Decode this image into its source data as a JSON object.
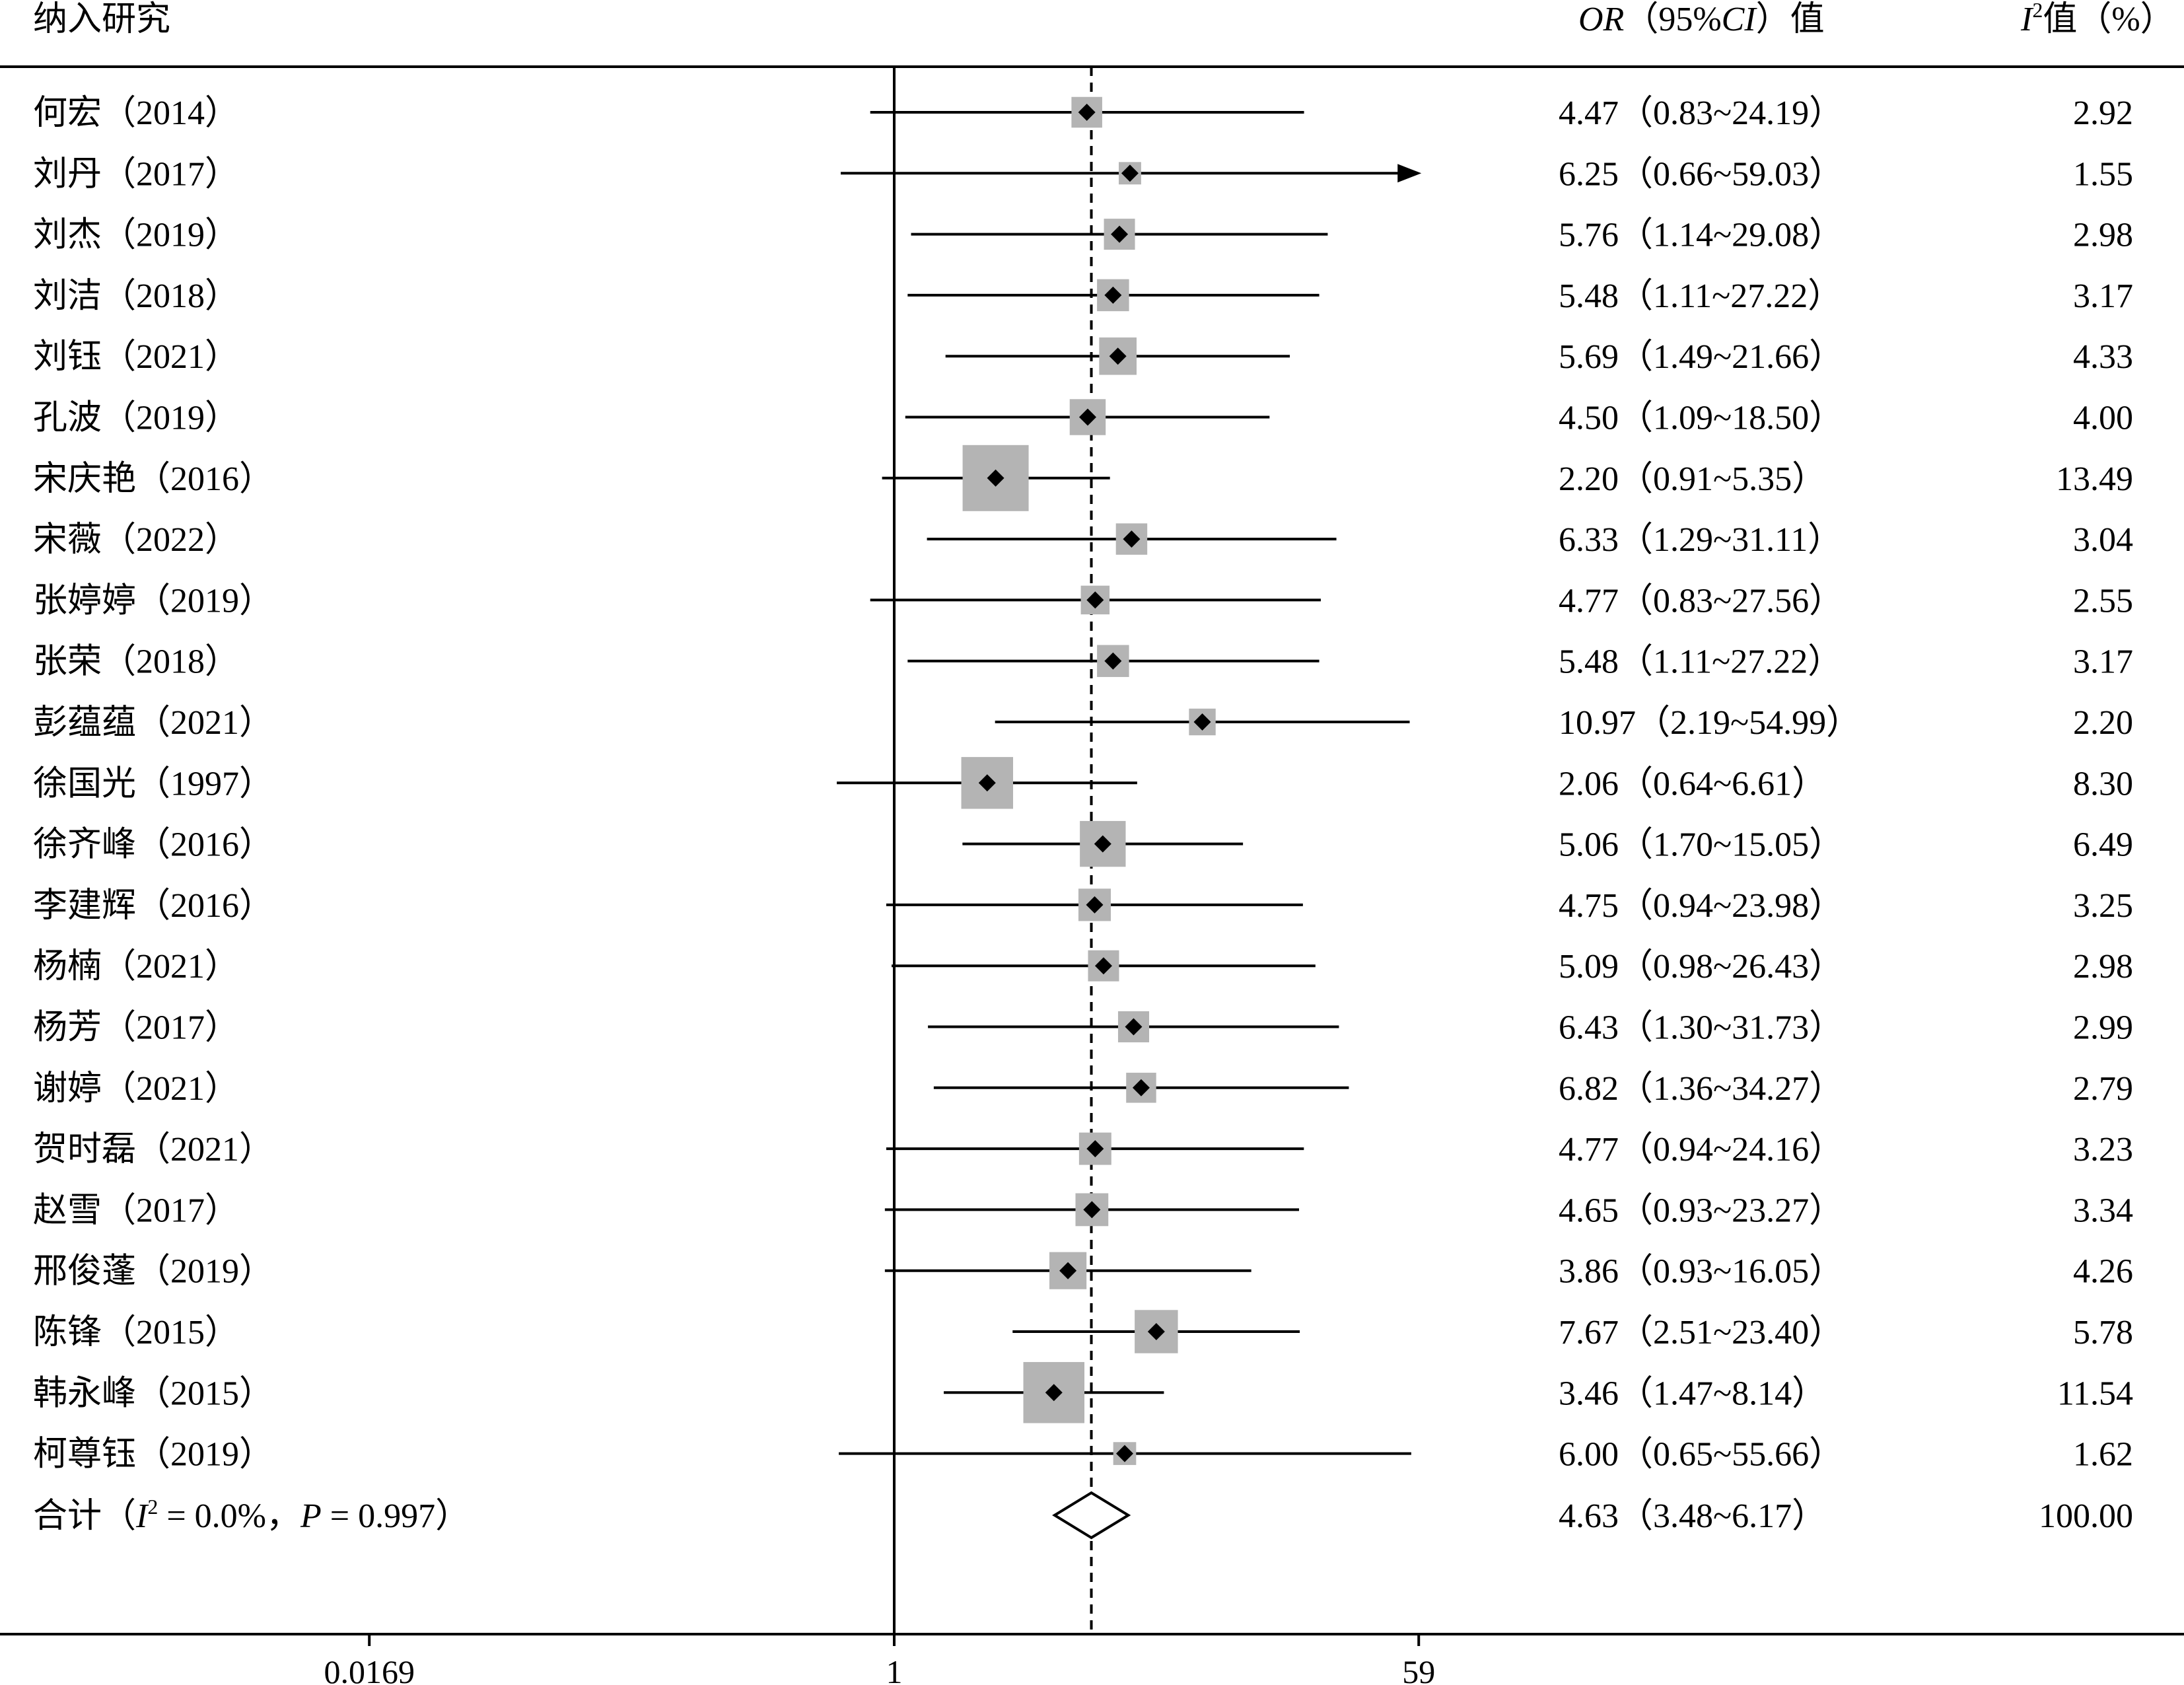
{
  "header": {
    "study_label": "纳入研究",
    "or_label_italic": "OR",
    "or_label_rest": "（95%",
    "ci_label_italic": "CI",
    "or_label_tail": "）值",
    "weight_label_italic": "I",
    "weight_label_sup": "2",
    "weight_label_rest": "值（%）"
  },
  "chart_data": {
    "type": "forest",
    "x_scale": "log",
    "xlim": [
      0.0169,
      59
    ],
    "x_ticks": [
      {
        "value": 0.0169,
        "label": "0.0169"
      },
      {
        "value": 1,
        "label": "1"
      },
      {
        "value": 59,
        "label": "59"
      }
    ],
    "reference_line": 1,
    "pooled_line": 4.63,
    "studies": [
      {
        "name": "何宏（2014）",
        "or": 4.47,
        "lower": 0.83,
        "upper": 24.19,
        "text": "4.47（0.83~24.19）",
        "weight": "2.92"
      },
      {
        "name": "刘丹（2017）",
        "or": 6.25,
        "lower": 0.66,
        "upper": 59.03,
        "text": "6.25（0.66~59.03）",
        "weight": "1.55",
        "arrow_right": true
      },
      {
        "name": "刘杰（2019）",
        "or": 5.76,
        "lower": 1.14,
        "upper": 29.08,
        "text": "5.76（1.14~29.08）",
        "weight": "2.98"
      },
      {
        "name": "刘洁（2018）",
        "or": 5.48,
        "lower": 1.11,
        "upper": 27.22,
        "text": "5.48（1.11~27.22）",
        "weight": "3.17"
      },
      {
        "name": "刘钰（2021）",
        "or": 5.69,
        "lower": 1.49,
        "upper": 21.66,
        "text": "5.69（1.49~21.66）",
        "weight": "4.33"
      },
      {
        "name": "孔波（2019）",
        "or": 4.5,
        "lower": 1.09,
        "upper": 18.5,
        "text": "4.50（1.09~18.50）",
        "weight": "4.00"
      },
      {
        "name": "宋庆艳（2016）",
        "or": 2.2,
        "lower": 0.91,
        "upper": 5.35,
        "text": "2.20（0.91~5.35）",
        "weight": "13.49"
      },
      {
        "name": "宋薇（2022）",
        "or": 6.33,
        "lower": 1.29,
        "upper": 31.11,
        "text": "6.33（1.29~31.11）",
        "weight": "3.04"
      },
      {
        "name": "张婷婷（2019）",
        "or": 4.77,
        "lower": 0.83,
        "upper": 27.56,
        "text": "4.77（0.83~27.56）",
        "weight": "2.55"
      },
      {
        "name": "张荣（2018）",
        "or": 5.48,
        "lower": 1.11,
        "upper": 27.22,
        "text": "5.48（1.11~27.22）",
        "weight": "3.17"
      },
      {
        "name": "彭蕴蕴（2021）",
        "or": 10.97,
        "lower": 2.19,
        "upper": 54.99,
        "text": "10.97（2.19~54.99）",
        "weight": "2.20"
      },
      {
        "name": "徐国光（1997）",
        "or": 2.06,
        "lower": 0.64,
        "upper": 6.61,
        "text": "2.06（0.64~6.61）",
        "weight": "8.30"
      },
      {
        "name": "徐齐峰（2016）",
        "or": 5.06,
        "lower": 1.7,
        "upper": 15.05,
        "text": "5.06（1.70~15.05）",
        "weight": "6.49"
      },
      {
        "name": "李建辉（2016）",
        "or": 4.75,
        "lower": 0.94,
        "upper": 23.98,
        "text": "4.75（0.94~23.98）",
        "weight": "3.25"
      },
      {
        "name": "杨楠（2021）",
        "or": 5.09,
        "lower": 0.98,
        "upper": 26.43,
        "text": "5.09（0.98~26.43）",
        "weight": "2.98"
      },
      {
        "name": "杨芳（2017）",
        "or": 6.43,
        "lower": 1.3,
        "upper": 31.73,
        "text": "6.43（1.30~31.73）",
        "weight": "2.99"
      },
      {
        "name": "谢婷（2021）",
        "or": 6.82,
        "lower": 1.36,
        "upper": 34.27,
        "text": "6.82（1.36~34.27）",
        "weight": "2.79"
      },
      {
        "name": "贺时磊（2021）",
        "or": 4.77,
        "lower": 0.94,
        "upper": 24.16,
        "text": "4.77（0.94~24.16）",
        "weight": "3.23"
      },
      {
        "name": "赵雪（2017）",
        "or": 4.65,
        "lower": 0.93,
        "upper": 23.27,
        "text": "4.65（0.93~23.27）",
        "weight": "3.34"
      },
      {
        "name": "邢俊蓬（2019）",
        "or": 3.86,
        "lower": 0.93,
        "upper": 16.05,
        "text": "3.86（0.93~16.05）",
        "weight": "4.26"
      },
      {
        "name": "陈锋（2015）",
        "or": 7.67,
        "lower": 2.51,
        "upper": 23.4,
        "text": "7.67（2.51~23.40）",
        "weight": "5.78"
      },
      {
        "name": "韩永峰（2015）",
        "or": 3.46,
        "lower": 1.47,
        "upper": 8.14,
        "text": "3.46（1.47~8.14）",
        "weight": "11.54"
      },
      {
        "name": "柯尊钰（2019）",
        "or": 6.0,
        "lower": 0.65,
        "upper": 55.66,
        "text": "6.00（0.65~55.66）",
        "weight": "1.62"
      }
    ],
    "overall": {
      "label_prefix": "合计（",
      "label_i": "I",
      "label_sup": "2",
      "label_mid": " = 0.0%，",
      "label_p": "P",
      "label_tail": " = 0.997）",
      "or": 4.63,
      "lower": 3.48,
      "upper": 6.17,
      "text": "4.63（3.48~6.17）",
      "weight": "100.00"
    }
  }
}
